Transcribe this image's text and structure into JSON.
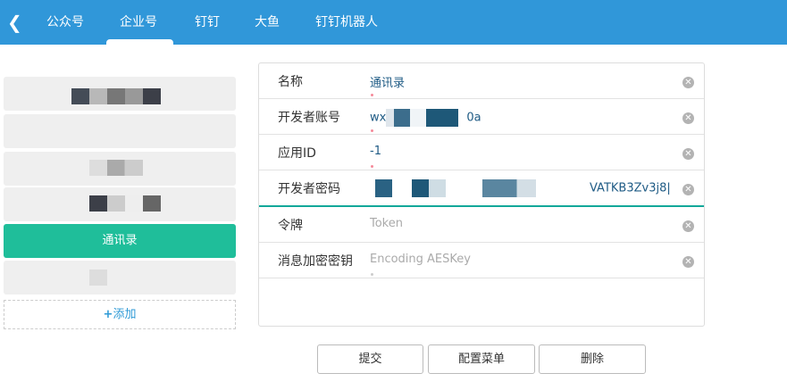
{
  "nav": {
    "back_icon": "chevron-left-icon",
    "tabs": [
      "公众号",
      "企业号",
      "钉钉",
      "大鱼",
      "钉钉机器人"
    ],
    "active_tab": 1
  },
  "sidebar": {
    "active_item": "通讯录",
    "add_label": "添加"
  },
  "form": {
    "fields": [
      {
        "label": "名称",
        "value": "通讯录",
        "placeholder": ""
      },
      {
        "label": "开发者账号",
        "value_prefix": "wx",
        "value_suffix": "0a",
        "placeholder": ""
      },
      {
        "label": "应用ID",
        "value": "-1",
        "placeholder": ""
      },
      {
        "label": "开发者密码",
        "value_suffix": "VATKB3Zv3j8",
        "placeholder": ""
      },
      {
        "label": "令牌",
        "value": "",
        "placeholder": "Token"
      },
      {
        "label": "消息加密密钥",
        "value": "",
        "placeholder": "Encoding AESKey"
      }
    ]
  },
  "buttons": {
    "submit": "提交",
    "menu": "配置菜单",
    "delete": "删除"
  },
  "colors": {
    "nav": "#3097d9",
    "active": "#1fbe9a",
    "focus": "#13a89a"
  }
}
